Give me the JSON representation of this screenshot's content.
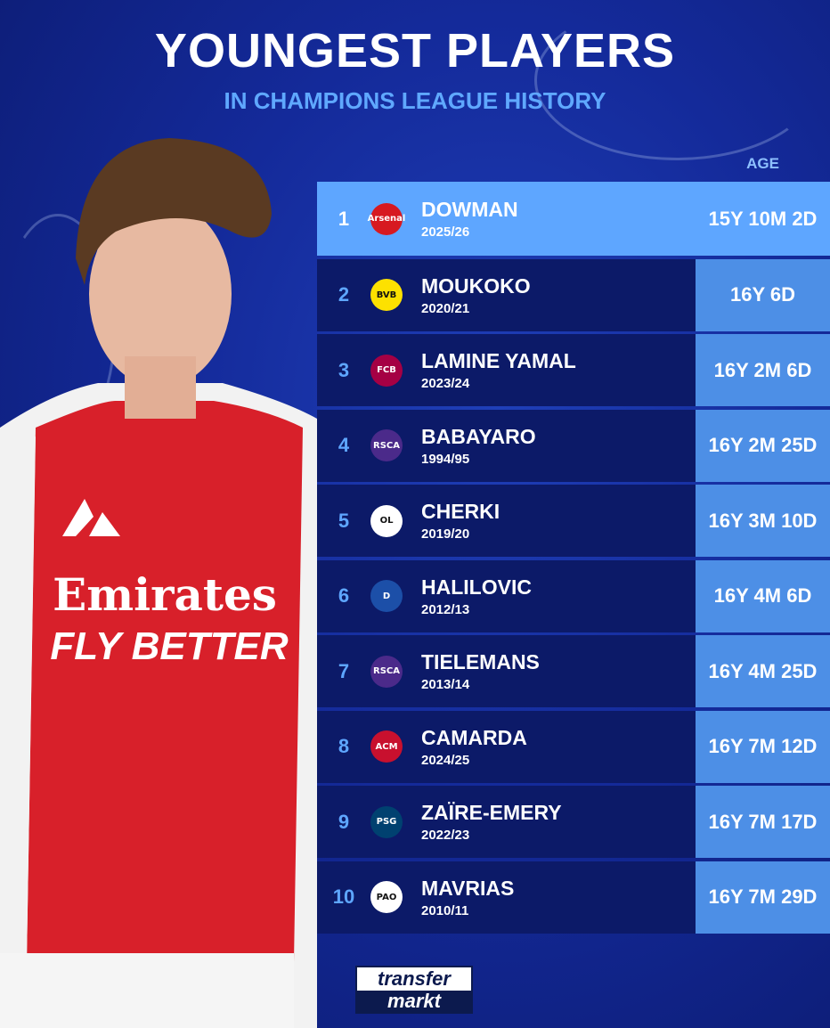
{
  "header": {
    "title": "YOUNGEST PLAYERS",
    "subtitle": "IN CHAMPIONS LEAGUE HISTORY"
  },
  "table": {
    "age_header": "AGE",
    "rows": [
      {
        "rank": "1",
        "name": "DOWMAN",
        "season": "2025/26",
        "age": "15Y 10M 2D",
        "club": "Arsenal",
        "crest_color": "#d71920"
      },
      {
        "rank": "2",
        "name": "MOUKOKO",
        "season": "2020/21",
        "age": "16Y 6D",
        "club": "BVB",
        "crest_color": "#fde100"
      },
      {
        "rank": "3",
        "name": "LAMINE YAMAL",
        "season": "2023/24",
        "age": "16Y 2M 6D",
        "club": "FCB",
        "crest_color": "#a50044"
      },
      {
        "rank": "4",
        "name": "BABAYARO",
        "season": "1994/95",
        "age": "16Y 2M 25D",
        "club": "RSCA",
        "crest_color": "#4b2a8a"
      },
      {
        "rank": "5",
        "name": "CHERKI",
        "season": "2019/20",
        "age": "16Y 3M 10D",
        "club": "OL",
        "crest_color": "#ffffff"
      },
      {
        "rank": "6",
        "name": "HALILOVIC",
        "season": "2012/13",
        "age": "16Y 4M 6D",
        "club": "D",
        "crest_color": "#1c4fa8"
      },
      {
        "rank": "7",
        "name": "TIELEMANS",
        "season": "2013/14",
        "age": "16Y 4M 25D",
        "club": "RSCA",
        "crest_color": "#4b2a8a"
      },
      {
        "rank": "8",
        "name": "CAMARDA",
        "season": "2024/25",
        "age": "16Y 7M 12D",
        "club": "ACM",
        "crest_color": "#c8102e"
      },
      {
        "rank": "9",
        "name": "ZAÏRE-EMERY",
        "season": "2022/23",
        "age": "16Y 7M 17D",
        "club": "PSG",
        "crest_color": "#004170"
      },
      {
        "rank": "10",
        "name": "MAVRIAS",
        "season": "2010/11",
        "age": "16Y 7M 29D",
        "club": "PAO",
        "crest_color": "#ffffff"
      }
    ]
  },
  "shirt": {
    "sponsor": "Emirates",
    "slogan": "FLY BETTER"
  },
  "logo": {
    "top": "transfer",
    "bottom": "markt"
  }
}
